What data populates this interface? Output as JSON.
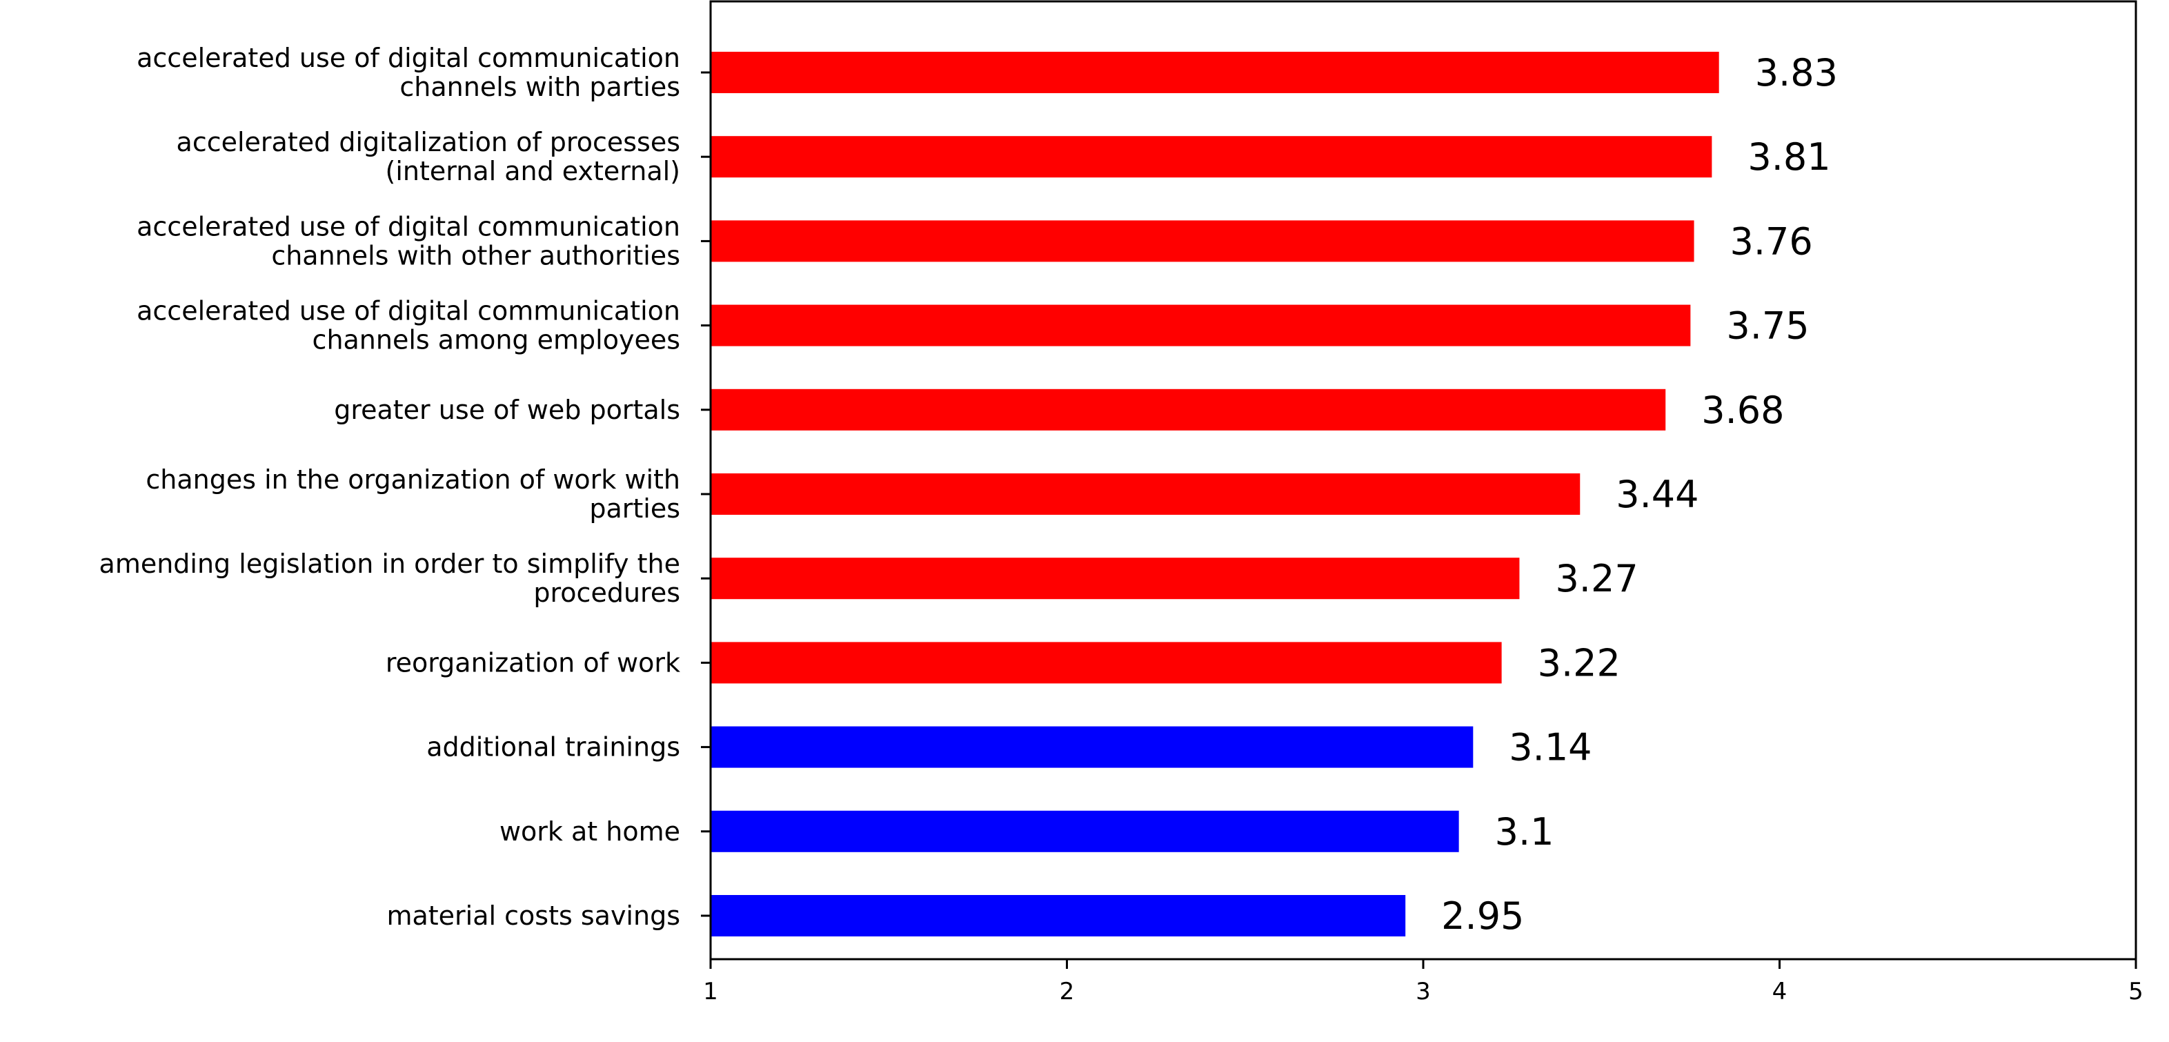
{
  "chart_data": {
    "type": "bar",
    "orientation": "horizontal",
    "categories": [
      [
        "accelerated use of digital communication",
        "channels with parties"
      ],
      [
        "accelerated digitalization of processes",
        "(internal and external)"
      ],
      [
        "accelerated use of digital communication",
        "channels with other authorities"
      ],
      [
        "accelerated use of digital communication",
        "channels among employees"
      ],
      [
        "greater use of web portals"
      ],
      [
        "changes in the organization of work with",
        "parties"
      ],
      [
        "amending legislation in order to simplify the",
        "procedures"
      ],
      [
        "reorganization of work"
      ],
      [
        "additional trainings"
      ],
      [
        "work at home"
      ],
      [
        "material costs savings"
      ]
    ],
    "values": [
      3.83,
      3.81,
      3.76,
      3.75,
      3.68,
      3.44,
      3.27,
      3.22,
      3.14,
      3.1,
      2.95
    ],
    "value_labels": [
      "3.83",
      "3.81",
      "3.76",
      "3.75",
      "3.68",
      "3.44",
      "3.27",
      "3.22",
      "3.14",
      "3.1",
      "2.95"
    ],
    "bar_colors": [
      "#ff0000",
      "#ff0000",
      "#ff0000",
      "#ff0000",
      "#ff0000",
      "#ff0000",
      "#ff0000",
      "#ff0000",
      "#0000ff",
      "#0000ff",
      "#0000ff"
    ],
    "xlim": [
      1,
      5
    ],
    "xticks": [
      1,
      2,
      3,
      4,
      5
    ],
    "xtick_labels": [
      "1",
      "2",
      "3",
      "4",
      "5"
    ],
    "title": "",
    "xlabel": "",
    "ylabel": "",
    "grid": false,
    "legend": "none"
  }
}
